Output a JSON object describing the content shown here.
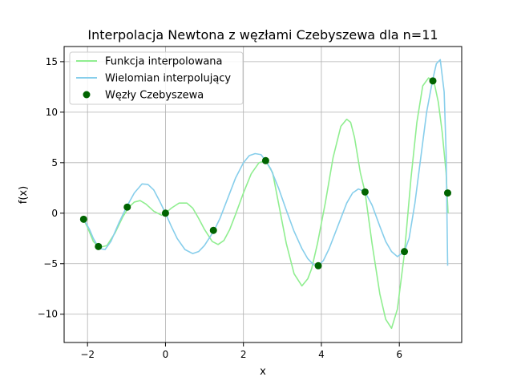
{
  "chart_data": {
    "type": "line",
    "title": "Interpolacja Newtona z węzłami Czebyszewa dla n=11",
    "xlabel": "x",
    "ylabel": "f(x)",
    "xlim": [
      -2.6,
      7.6
    ],
    "ylim": [
      -12.8,
      16.5
    ],
    "xticks": [
      -2,
      0,
      2,
      4,
      6
    ],
    "yticks": [
      -10,
      -5,
      0,
      5,
      10,
      15
    ],
    "grid": true,
    "legend_position": "top-left",
    "series": [
      {
        "name": "Funkcja interpolowana",
        "kind": "line",
        "color": "#90ee90",
        "x": [
          -2.14,
          -2.0,
          -1.85,
          -1.7,
          -1.5,
          -1.3,
          -1.1,
          -0.95,
          -0.8,
          -0.65,
          -0.5,
          -0.3,
          -0.1,
          0.0,
          0.15,
          0.35,
          0.55,
          0.7,
          0.85,
          1.0,
          1.2,
          1.35,
          1.5,
          1.65,
          1.8,
          2.0,
          2.2,
          2.4,
          2.57,
          2.75,
          2.9,
          3.1,
          3.3,
          3.5,
          3.65,
          3.75,
          3.9,
          4.1,
          4.3,
          4.5,
          4.65,
          4.75,
          4.85,
          5.0,
          5.12,
          5.3,
          5.5,
          5.65,
          5.8,
          5.95,
          6.13,
          6.3,
          6.45,
          6.6,
          6.75,
          6.9,
          7.0,
          7.1,
          7.2,
          7.25
        ],
        "y": [
          -0.3,
          -1.4,
          -2.8,
          -3.4,
          -3.2,
          -2.0,
          -0.4,
          0.55,
          1.1,
          1.25,
          0.9,
          0.2,
          -0.2,
          0.0,
          0.5,
          1.0,
          1.0,
          0.5,
          -0.5,
          -1.6,
          -2.8,
          -3.1,
          -2.7,
          -1.6,
          -0.1,
          2.0,
          3.9,
          5.0,
          5.2,
          4.0,
          1.0,
          -3.0,
          -6.0,
          -7.2,
          -6.5,
          -5.5,
          -3.0,
          1.0,
          5.5,
          8.6,
          9.3,
          9.0,
          7.5,
          4.0,
          2.1,
          -3.0,
          -8.0,
          -10.5,
          -11.4,
          -9.5,
          -4.0,
          3.5,
          9.0,
          12.6,
          13.4,
          12.8,
          11.0,
          8.0,
          4.0,
          0.0
        ]
      },
      {
        "name": "Wielomian interpolujący",
        "kind": "line",
        "color": "#87ceeb",
        "x": [
          -2.14,
          -2.05,
          -1.95,
          -1.85,
          -1.7,
          -1.55,
          -1.4,
          -1.2,
          -1.0,
          -0.8,
          -0.6,
          -0.45,
          -0.3,
          -0.15,
          0.0,
          0.15,
          0.3,
          0.5,
          0.7,
          0.85,
          1.0,
          1.15,
          1.25,
          1.4,
          1.6,
          1.8,
          2.0,
          2.15,
          2.3,
          2.45,
          2.57,
          2.7,
          2.9,
          3.1,
          3.3,
          3.5,
          3.65,
          3.8,
          3.92,
          4.05,
          4.2,
          4.35,
          4.5,
          4.65,
          4.8,
          4.95,
          5.12,
          5.3,
          5.5,
          5.65,
          5.8,
          5.95,
          6.13,
          6.25,
          6.4,
          6.55,
          6.7,
          6.85,
          6.95,
          7.05,
          7.15,
          7.2,
          7.24
        ],
        "y": [
          -0.6,
          -0.9,
          -1.6,
          -2.5,
          -3.5,
          -3.6,
          -2.8,
          -1.0,
          0.6,
          2.0,
          2.9,
          2.85,
          2.3,
          1.2,
          0.0,
          -1.3,
          -2.5,
          -3.6,
          -4.0,
          -3.8,
          -3.2,
          -2.3,
          -1.7,
          -0.5,
          1.5,
          3.5,
          5.0,
          5.7,
          5.9,
          5.8,
          5.2,
          4.4,
          2.5,
          0.3,
          -1.8,
          -3.5,
          -4.5,
          -5.1,
          -5.2,
          -4.7,
          -3.5,
          -2.0,
          -0.5,
          1.0,
          2.0,
          2.4,
          2.1,
          0.8,
          -1.3,
          -2.8,
          -3.8,
          -4.3,
          -3.8,
          -2.5,
          1.0,
          5.5,
          10.0,
          13.1,
          14.8,
          15.2,
          12.0,
          6.0,
          -5.2
        ]
      },
      {
        "name": "Węzły Czebyszewa",
        "kind": "scatter",
        "color": "#006400",
        "x": [
          -2.1,
          -1.72,
          -0.98,
          0.0,
          1.23,
          2.57,
          3.92,
          5.12,
          6.13,
          6.86,
          7.24
        ],
        "y": [
          -0.6,
          -3.3,
          0.6,
          0.0,
          -1.7,
          5.2,
          -5.2,
          2.1,
          -3.8,
          13.1,
          2.0
        ]
      }
    ]
  }
}
